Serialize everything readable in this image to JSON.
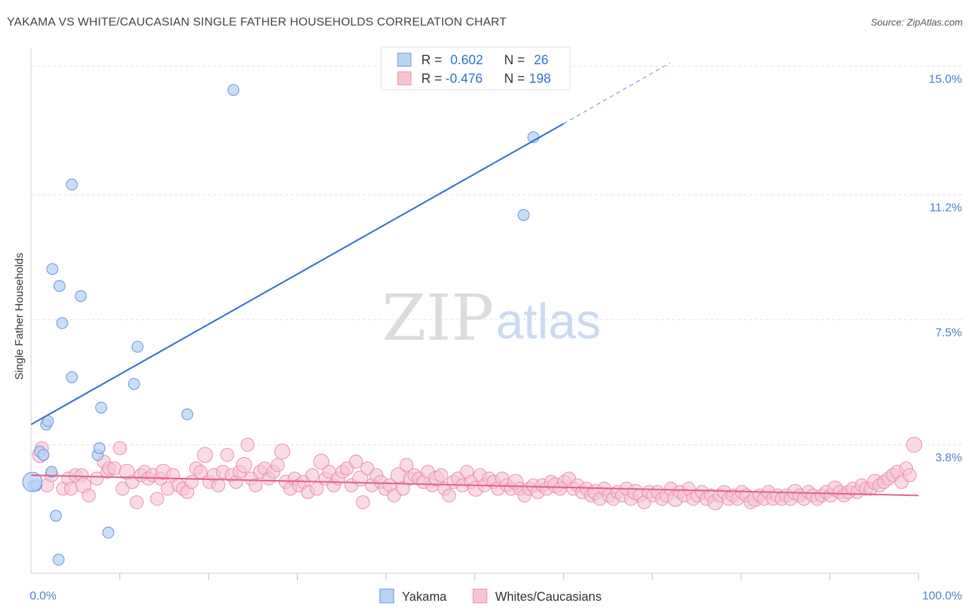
{
  "header": {
    "title": "YAKAMA VS WHITE/CAUCASIAN SINGLE FATHER HOUSEHOLDS CORRELATION CHART",
    "source": "Source: ZipAtlas.com"
  },
  "watermark": {
    "part1": "ZIP",
    "part2": "atlas"
  },
  "legend": {
    "rows": [
      {
        "r_label": "R =",
        "r_value": "0.602",
        "n_label": "N =",
        "n_value": "26"
      },
      {
        "r_label": "R =",
        "r_value": "-0.476",
        "n_label": "N =",
        "n_value": "198"
      }
    ]
  },
  "chart_data": {
    "type": "scatter",
    "ylabel": "Single Father Households",
    "xlabel": "",
    "xlim": [
      0,
      100
    ],
    "ylim": [
      0,
      15.0
    ],
    "x_tick_labels": [
      "0.0%",
      "100.0%"
    ],
    "y_ticks": [
      {
        "value": 3.8,
        "label": "3.8%"
      },
      {
        "value": 7.5,
        "label": "7.5%"
      },
      {
        "value": 11.2,
        "label": "11.2%"
      },
      {
        "value": 15.0,
        "label": "15.0%"
      }
    ],
    "grid": "dashed horizontal",
    "legend_position": "top-center",
    "colors": {
      "yakama_fill": "#b8d3f5",
      "yakama_stroke": "#5b8fd6",
      "yakama_line": "#2f6fd1",
      "white_fill": "#f7c3d3",
      "white_stroke": "#e98aa8",
      "white_line": "#e4608a"
    },
    "series": [
      {
        "name": "Yakama",
        "trend": {
          "x0": 0,
          "y0": 4.4,
          "x1": 60,
          "y1": 13.3,
          "dash_to_x": 72,
          "dash_to_y": 15.1
        },
        "points": [
          [
            0.3,
            2.6
          ],
          [
            0.6,
            2.6
          ],
          [
            1.0,
            3.6
          ],
          [
            1.4,
            3.5
          ],
          [
            1.7,
            4.4
          ],
          [
            1.9,
            4.5
          ],
          [
            2.3,
            3.0
          ],
          [
            2.4,
            9.0
          ],
          [
            2.8,
            1.7
          ],
          [
            3.1,
            0.4
          ],
          [
            3.2,
            8.5
          ],
          [
            3.5,
            7.4
          ],
          [
            4.6,
            11.5
          ],
          [
            4.6,
            5.8
          ],
          [
            5.6,
            8.2
          ],
          [
            7.5,
            3.5
          ],
          [
            7.7,
            3.7
          ],
          [
            7.9,
            4.9
          ],
          [
            8.7,
            1.2
          ],
          [
            11.6,
            5.6
          ],
          [
            12.0,
            6.7
          ],
          [
            17.6,
            4.7
          ],
          [
            22.8,
            14.3
          ],
          [
            55.5,
            10.6
          ],
          [
            56.6,
            12.9
          ],
          [
            0.15,
            2.7
          ]
        ]
      },
      {
        "name": "Whites/Caucasians",
        "trend": {
          "x0": 0,
          "y0": 2.9,
          "x1": 100,
          "y1": 2.3
        },
        "points": [
          [
            1.0,
            3.5
          ],
          [
            1.2,
            3.7
          ],
          [
            1.8,
            2.6
          ],
          [
            2.3,
            2.9
          ],
          [
            3.6,
            2.5
          ],
          [
            4.2,
            2.8
          ],
          [
            4.5,
            2.5
          ],
          [
            5.0,
            2.9
          ],
          [
            5.7,
            2.9
          ],
          [
            5.9,
            2.6
          ],
          [
            6.5,
            2.3
          ],
          [
            7.4,
            2.8
          ],
          [
            8.2,
            3.3
          ],
          [
            8.6,
            3.0
          ],
          [
            8.8,
            3.1
          ],
          [
            9.4,
            3.1
          ],
          [
            10.0,
            3.7
          ],
          [
            10.3,
            2.5
          ],
          [
            10.8,
            3.0
          ],
          [
            11.4,
            2.7
          ],
          [
            11.9,
            2.1
          ],
          [
            12.4,
            2.9
          ],
          [
            12.8,
            3.0
          ],
          [
            13.2,
            2.8
          ],
          [
            13.7,
            2.9
          ],
          [
            14.2,
            2.2
          ],
          [
            14.6,
            2.8
          ],
          [
            14.9,
            3.0
          ],
          [
            15.4,
            2.5
          ],
          [
            16.0,
            2.9
          ],
          [
            16.6,
            2.6
          ],
          [
            17.1,
            2.5
          ],
          [
            17.6,
            2.4
          ],
          [
            18.1,
            2.7
          ],
          [
            18.6,
            3.1
          ],
          [
            19.1,
            3.0
          ],
          [
            19.6,
            3.5
          ],
          [
            20.1,
            2.7
          ],
          [
            20.6,
            2.9
          ],
          [
            21.1,
            2.6
          ],
          [
            21.6,
            3.0
          ],
          [
            22.1,
            3.5
          ],
          [
            22.6,
            2.9
          ],
          [
            23.1,
            2.7
          ],
          [
            23.5,
            3.0
          ],
          [
            24.0,
            3.2
          ],
          [
            24.4,
            3.8
          ],
          [
            24.8,
            2.8
          ],
          [
            25.3,
            2.6
          ],
          [
            25.8,
            3.0
          ],
          [
            26.3,
            3.1
          ],
          [
            26.8,
            2.8
          ],
          [
            27.3,
            3.0
          ],
          [
            27.8,
            3.2
          ],
          [
            28.3,
            3.6
          ],
          [
            28.7,
            2.7
          ],
          [
            29.2,
            2.5
          ],
          [
            29.7,
            2.8
          ],
          [
            30.2,
            2.6
          ],
          [
            30.7,
            2.7
          ],
          [
            31.2,
            2.4
          ],
          [
            31.7,
            2.9
          ],
          [
            32.2,
            2.5
          ],
          [
            32.7,
            3.3
          ],
          [
            33.2,
            2.8
          ],
          [
            33.6,
            3.0
          ],
          [
            34.1,
            2.6
          ],
          [
            34.6,
            2.8
          ],
          [
            35.1,
            3.0
          ],
          [
            35.6,
            3.1
          ],
          [
            36.1,
            2.6
          ],
          [
            36.6,
            3.3
          ],
          [
            37.1,
            2.8
          ],
          [
            37.4,
            2.1
          ],
          [
            37.9,
            3.1
          ],
          [
            38.4,
            2.6
          ],
          [
            38.9,
            2.9
          ],
          [
            39.4,
            2.7
          ],
          [
            39.9,
            2.5
          ],
          [
            40.4,
            2.6
          ],
          [
            40.9,
            2.3
          ],
          [
            41.4,
            2.9
          ],
          [
            41.9,
            2.5
          ],
          [
            42.3,
            3.2
          ],
          [
            42.7,
            2.8
          ],
          [
            43.2,
            2.9
          ],
          [
            43.7,
            2.8
          ],
          [
            44.2,
            2.7
          ],
          [
            44.7,
            3.0
          ],
          [
            45.2,
            2.6
          ],
          [
            45.7,
            2.8
          ],
          [
            46.2,
            2.9
          ],
          [
            46.6,
            2.5
          ],
          [
            47.1,
            2.3
          ],
          [
            47.6,
            2.7
          ],
          [
            48.1,
            2.8
          ],
          [
            48.6,
            2.6
          ],
          [
            49.1,
            3.0
          ],
          [
            49.6,
            2.7
          ],
          [
            50.1,
            2.5
          ],
          [
            50.6,
            2.9
          ],
          [
            51.1,
            2.6
          ],
          [
            51.6,
            2.8
          ],
          [
            52.1,
            2.7
          ],
          [
            52.6,
            2.5
          ],
          [
            53.1,
            2.8
          ],
          [
            53.6,
            2.6
          ],
          [
            54.1,
            2.5
          ],
          [
            54.6,
            2.7
          ],
          [
            55.1,
            2.5
          ],
          [
            55.6,
            2.3
          ],
          [
            56.1,
            2.5
          ],
          [
            56.6,
            2.6
          ],
          [
            57.1,
            2.4
          ],
          [
            57.6,
            2.6
          ],
          [
            58.1,
            2.5
          ],
          [
            58.6,
            2.7
          ],
          [
            59.1,
            2.6
          ],
          [
            59.6,
            2.5
          ],
          [
            60.1,
            2.7
          ],
          [
            60.6,
            2.8
          ],
          [
            61.1,
            2.5
          ],
          [
            61.6,
            2.6
          ],
          [
            62.1,
            2.4
          ],
          [
            62.6,
            2.5
          ],
          [
            63.1,
            2.3
          ],
          [
            63.6,
            2.4
          ],
          [
            64.1,
            2.2
          ],
          [
            64.6,
            2.5
          ],
          [
            65.1,
            2.3
          ],
          [
            65.6,
            2.2
          ],
          [
            66.1,
            2.4
          ],
          [
            66.6,
            2.3
          ],
          [
            67.1,
            2.5
          ],
          [
            67.6,
            2.2
          ],
          [
            68.1,
            2.4
          ],
          [
            68.6,
            2.3
          ],
          [
            69.1,
            2.1
          ],
          [
            69.6,
            2.4
          ],
          [
            70.1,
            2.3
          ],
          [
            70.6,
            2.4
          ],
          [
            71.1,
            2.2
          ],
          [
            71.6,
            2.3
          ],
          [
            72.1,
            2.5
          ],
          [
            72.6,
            2.2
          ],
          [
            73.1,
            2.4
          ],
          [
            73.6,
            2.3
          ],
          [
            74.1,
            2.5
          ],
          [
            74.6,
            2.2
          ],
          [
            75.1,
            2.3
          ],
          [
            75.6,
            2.4
          ],
          [
            76.1,
            2.2
          ],
          [
            76.6,
            2.3
          ],
          [
            77.1,
            2.1
          ],
          [
            77.6,
            2.3
          ],
          [
            78.1,
            2.4
          ],
          [
            78.6,
            2.2
          ],
          [
            79.1,
            2.3
          ],
          [
            79.6,
            2.2
          ],
          [
            80.1,
            2.4
          ],
          [
            80.6,
            2.3
          ],
          [
            81.1,
            2.1
          ],
          [
            81.6,
            2.2
          ],
          [
            82.1,
            2.3
          ],
          [
            82.6,
            2.2
          ],
          [
            83.1,
            2.4
          ],
          [
            83.6,
            2.2
          ],
          [
            84.1,
            2.3
          ],
          [
            84.6,
            2.2
          ],
          [
            85.1,
            2.3
          ],
          [
            85.6,
            2.2
          ],
          [
            86.1,
            2.4
          ],
          [
            86.6,
            2.3
          ],
          [
            87.1,
            2.2
          ],
          [
            87.6,
            2.4
          ],
          [
            88.1,
            2.3
          ],
          [
            88.6,
            2.2
          ],
          [
            89.1,
            2.3
          ],
          [
            89.6,
            2.4
          ],
          [
            90.1,
            2.3
          ],
          [
            90.6,
            2.5
          ],
          [
            91.1,
            2.4
          ],
          [
            91.6,
            2.3
          ],
          [
            92.1,
            2.4
          ],
          [
            92.6,
            2.5
          ],
          [
            93.1,
            2.4
          ],
          [
            93.6,
            2.6
          ],
          [
            94.1,
            2.5
          ],
          [
            94.6,
            2.5
          ],
          [
            95.1,
            2.7
          ],
          [
            95.6,
            2.6
          ],
          [
            96.1,
            2.7
          ],
          [
            96.6,
            2.8
          ],
          [
            97.1,
            2.9
          ],
          [
            97.6,
            3.0
          ],
          [
            98.1,
            2.7
          ],
          [
            98.6,
            3.1
          ],
          [
            99.0,
            2.9
          ],
          [
            99.5,
            3.8
          ]
        ]
      }
    ]
  },
  "bottom_legend": {
    "items": [
      "Yakama",
      "Whites/Caucasians"
    ]
  }
}
